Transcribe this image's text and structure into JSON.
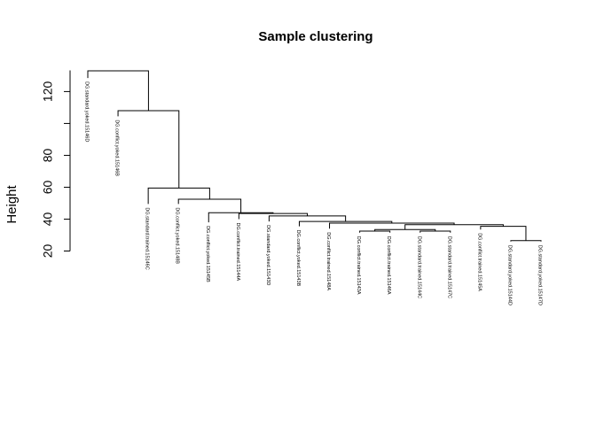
{
  "chart_data": {
    "type": "dendrogram",
    "title": "Sample clustering",
    "ylabel": "Height",
    "xlabel": "",
    "ylim": [
      17,
      138
    ],
    "yticks": [
      20,
      40,
      60,
      80,
      100,
      120
    ],
    "ytick_labels": [
      "20",
      "40",
      "60",
      "80",
      "",
      "120"
    ],
    "grid": false,
    "leaves": [
      "DG.standard.yoked.15146D",
      "DG.conflict.yoked.15146B",
      "DG.standard.trained.15146C",
      "DG.conflict.yoked.15148B",
      "DG.conflict.yoked.15145B",
      "DG.conflict.trained.15144A",
      "DG.standard.yoked.15143D",
      "DG.conflict.yoked.15143B",
      "DG.conflict.trained.15148A",
      "DG.conflict.trained.15143A",
      "DG.conflict.trained.15146A",
      "DG.standard.trained.15144C",
      "DG.standard.trained.15147C",
      "DG.conflict.trained.15145A",
      "DG.standard.yoked.15144D",
      "DG.standard.yoked.15147D"
    ],
    "leaf_heights": [
      128.5,
      104.5,
      49.5,
      49.5,
      38,
      40,
      38.5,
      35.5,
      34,
      31.5,
      31.5,
      31.5,
      31.5,
      33.5,
      26,
      26
    ],
    "merges": [
      [
        -10,
        -11,
        32.5
      ],
      [
        -12,
        -13,
        32.5
      ],
      [
        -15,
        -16,
        26.5
      ],
      [
        -14,
        3,
        35.5
      ],
      [
        1,
        2,
        33.5
      ],
      [
        5,
        4,
        36.5
      ],
      [
        -9,
        6,
        37.5
      ],
      [
        -8,
        7,
        38.5
      ],
      [
        -7,
        8,
        42
      ],
      [
        -6,
        9,
        43.5
      ],
      [
        -5,
        10,
        44
      ],
      [
        -4,
        11,
        52.5
      ],
      [
        -3,
        12,
        59.5
      ],
      [
        -2,
        13,
        108
      ],
      [
        -1,
        14,
        133
      ]
    ]
  }
}
